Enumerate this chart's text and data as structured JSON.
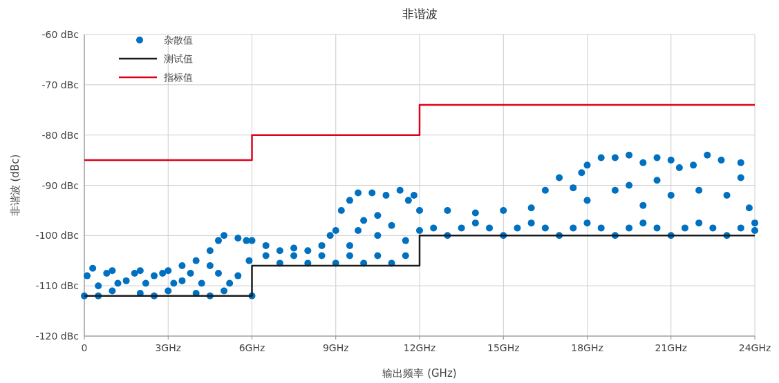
{
  "chart_data": {
    "type": "scatter",
    "title": "非谐波",
    "xlabel": "输出频率 (GHz)",
    "ylabel": "非谐波 (dBc)",
    "xlim": [
      0,
      24
    ],
    "xticks": [
      0,
      {
        "value": 3,
        "label": "3GHz"
      },
      {
        "value": 6,
        "label": "6GHz"
      },
      {
        "value": 9,
        "label": "9GHz"
      },
      {
        "value": 12,
        "label": "12GHz"
      },
      {
        "value": 15,
        "label": "15GHz"
      },
      {
        "value": 18,
        "label": "18GHz"
      },
      {
        "value": 21,
        "label": "21GHz"
      },
      {
        "value": 24,
        "label": "24GHz"
      }
    ],
    "ylim": [
      -120,
      -60
    ],
    "yticks": [
      {
        "value": -120,
        "label": "-120 dBc"
      },
      {
        "value": -110,
        "label": "-110 dBc"
      },
      {
        "value": -100,
        "label": "-100 dBc"
      },
      {
        "value": -90,
        "label": "-90 dBc"
      },
      {
        "value": -80,
        "label": "-80 dBc"
      },
      {
        "value": -70,
        "label": "-70 dBc"
      },
      {
        "value": -60,
        "label": "-60 dBc"
      }
    ],
    "grid": true,
    "legend": "top left",
    "series": [
      {
        "name": "杂散值",
        "marker": "circle",
        "color": "#0070c0",
        "x": [
          0,
          0.1,
          0.3,
          0.5,
          0.5,
          1,
          1,
          1.5,
          2,
          2,
          2.5,
          2.5,
          3,
          3,
          3.5,
          3.5,
          4,
          4,
          4.5,
          4.5,
          4.5,
          4.8,
          5,
          5,
          5.5,
          5.5,
          5.8,
          5.9,
          6,
          1.2,
          2.2,
          3.2,
          4.2,
          5.2,
          0.8,
          1.8,
          2.8,
          3.8,
          4.8,
          6,
          6.5,
          7,
          7,
          7.5,
          8,
          8,
          8.5,
          8.8,
          9,
          9,
          9.2,
          9.5,
          9.5,
          9.8,
          9.8,
          10,
          10,
          10.3,
          10.5,
          10.5,
          10.8,
          11,
          11,
          11.3,
          11.5,
          11.6,
          11.8,
          12,
          6.5,
          7.5,
          8.5,
          9.5,
          10.5,
          11.5,
          12,
          13,
          13,
          14,
          14,
          15,
          15,
          16,
          16,
          16.5,
          17,
          17,
          17.5,
          17.8,
          18,
          18,
          18,
          18.5,
          19,
          19,
          19,
          19.5,
          19.5,
          20,
          20,
          20,
          20.5,
          20.5,
          21,
          21,
          21,
          21.3,
          21.8,
          22,
          22,
          22.3,
          22.8,
          23,
          23,
          23.5,
          23.5,
          23.8,
          24,
          24,
          12.5,
          13.5,
          14.5,
          15.5,
          16.5,
          17.5,
          18.5,
          19.5,
          20.5,
          21.5,
          22.5,
          23.5
        ],
        "values": [
          -112,
          -108,
          -106.5,
          -110,
          -112,
          -107,
          -111,
          -109,
          -107,
          -111.5,
          -108,
          -112,
          -107,
          -111,
          -106,
          -109,
          -105,
          -111.5,
          -106,
          -103,
          -112,
          -101,
          -100,
          -111,
          -100.5,
          -108,
          -101,
          -105,
          -112,
          -109.5,
          -109.5,
          -109.5,
          -109.5,
          -109.5,
          -107.5,
          -107.5,
          -107.5,
          -107.5,
          -107.5,
          -101,
          -102,
          -103,
          -105.5,
          -102.5,
          -103,
          -105.5,
          -102,
          -100,
          -99,
          -105.5,
          -95,
          -93,
          -102,
          -91.5,
          -99,
          -97,
          -105.5,
          -91.5,
          -96,
          -100,
          -92,
          -98,
          -105.5,
          -91,
          -101,
          -93,
          -92,
          -99,
          -104,
          -104,
          -104,
          -104,
          -104,
          -104,
          -95,
          -95,
          -100,
          -95.5,
          -97.5,
          -95,
          -100,
          -94.5,
          -97.5,
          -91,
          -88.5,
          -100,
          -90.5,
          -87.5,
          -86,
          -93,
          -97.5,
          -84.5,
          -84.5,
          -91,
          -100,
          -84,
          -90,
          -85.5,
          -94,
          -97.5,
          -84.5,
          -89,
          -85,
          -92,
          -100,
          -86.5,
          -86,
          -91,
          -97.5,
          -84,
          -85,
          -92,
          -100,
          -85.5,
          -88.5,
          -94.5,
          -99,
          -97.5,
          -98.5,
          -98.5,
          -98.5,
          -98.5,
          -98.5,
          -98.5,
          -98.5,
          -98.5,
          -98.5,
          -98.5,
          -98.5,
          -98.5
        ]
      },
      {
        "name": "测试值",
        "type": "step",
        "marker": "none",
        "color": "#1a1a1a",
        "x": [
          0,
          6,
          12,
          24
        ],
        "values": [
          -112,
          -106,
          -100,
          -100
        ]
      },
      {
        "name": "指标值",
        "type": "step",
        "marker": "none",
        "color": "#e0001a",
        "x": [
          0,
          6,
          12,
          24
        ],
        "values": [
          -85,
          -80,
          -74,
          -74
        ]
      }
    ]
  }
}
